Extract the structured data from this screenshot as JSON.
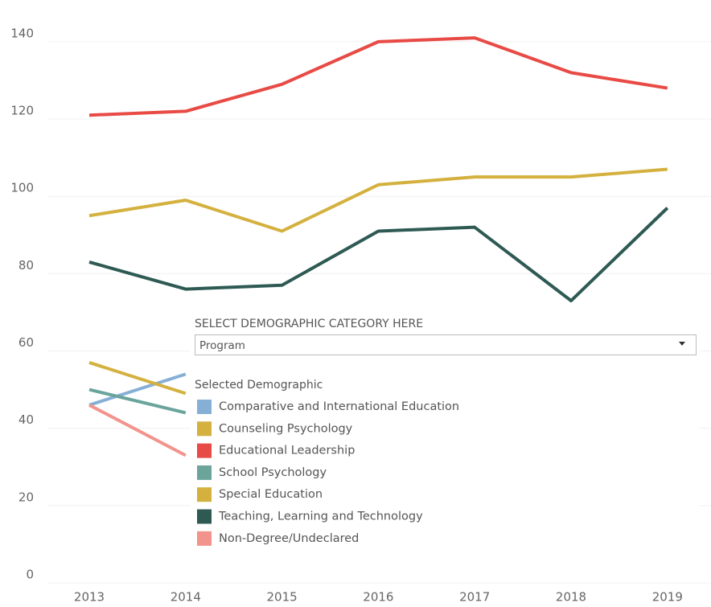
{
  "chart_data": {
    "type": "line",
    "categories": [
      "2013",
      "2014",
      "2015",
      "2016",
      "2017",
      "2018",
      "2019"
    ],
    "ylim": [
      0,
      150
    ],
    "yticks": [
      0,
      20,
      40,
      60,
      80,
      100,
      120,
      140
    ],
    "grid": true,
    "filter": {
      "label": "SELECT DEMOGRAPHIC CATEGORY HERE",
      "value": "Program"
    },
    "legend_title": "Selected Demographic",
    "series": [
      {
        "name": "Comparative and International Education",
        "color": "#86afd6",
        "values": [
          46,
          54,
          null,
          null,
          null,
          null,
          null
        ]
      },
      {
        "name": "Counseling Psychology",
        "color": "#d4b13f",
        "values": [
          57,
          49,
          null,
          null,
          null,
          null,
          null
        ]
      },
      {
        "name": "Educational Leadership",
        "color": "#e84a45",
        "values": [
          121,
          122,
          129,
          140,
          141,
          132,
          128
        ]
      },
      {
        "name": "School Psychology",
        "color": "#6aa49b",
        "values": [
          50,
          44,
          null,
          null,
          null,
          null,
          null
        ]
      },
      {
        "name": "Special Education",
        "color": "#d4b13f",
        "values": [
          95,
          99,
          91,
          103,
          105,
          105,
          107
        ]
      },
      {
        "name": "Teaching, Learning and Technology",
        "color": "#2e5a53",
        "values": [
          83,
          76,
          77,
          91,
          92,
          73,
          97
        ]
      },
      {
        "name": "Non-Degree/Undeclared",
        "color": "#f2938c",
        "values": [
          46,
          33,
          null,
          null,
          null,
          null,
          null
        ]
      }
    ]
  }
}
